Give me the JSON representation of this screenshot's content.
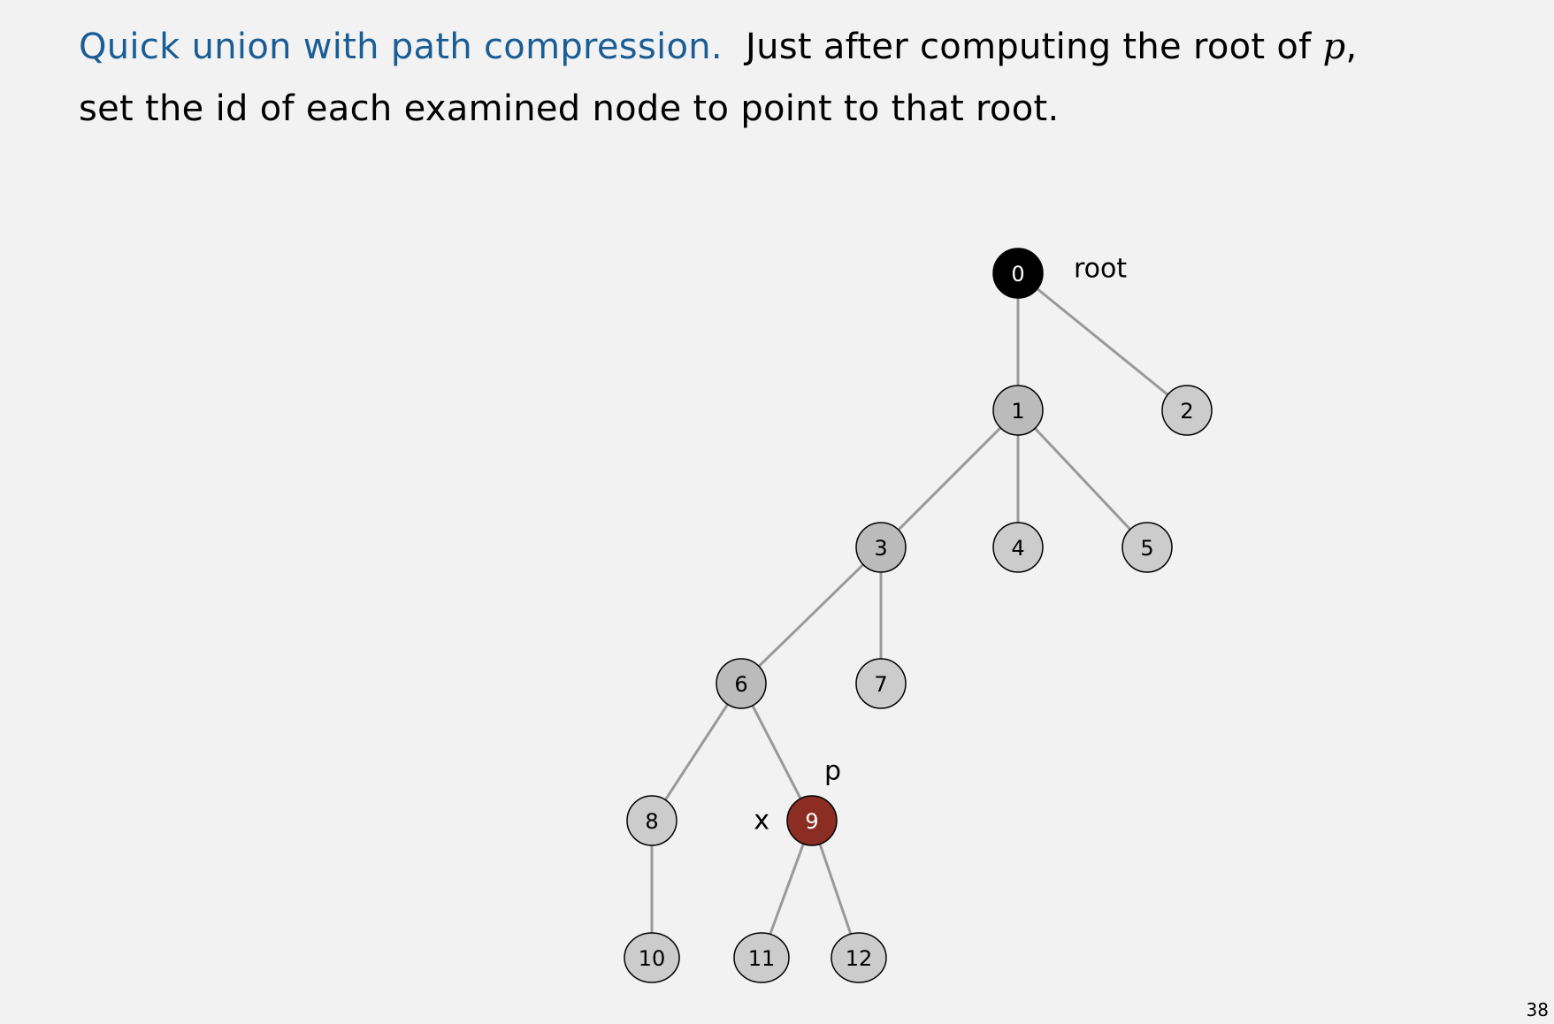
{
  "heading": {
    "lead": "Quick union with path compression.",
    "text_before_var": "Just after computing the root of",
    "var": "p",
    "text_after_var": ",",
    "line2": "set the id of each examined node to point to that root."
  },
  "slide_number": "38",
  "colors": {
    "lead_text": "#1a5d94",
    "root_fill": "#000000",
    "highlight_fill": "#8b2d22",
    "path_fill": "#bbbbbb",
    "plain_fill": "#cccccc",
    "edge": "#999999",
    "background": "#f2f2f2"
  },
  "nodes": [
    {
      "id": "0",
      "label": "0",
      "kind": "root"
    },
    {
      "id": "1",
      "label": "1",
      "kind": "path"
    },
    {
      "id": "2",
      "label": "2",
      "kind": "plain"
    },
    {
      "id": "3",
      "label": "3",
      "kind": "path"
    },
    {
      "id": "4",
      "label": "4",
      "kind": "plain"
    },
    {
      "id": "5",
      "label": "5",
      "kind": "plain"
    },
    {
      "id": "6",
      "label": "6",
      "kind": "path"
    },
    {
      "id": "7",
      "label": "7",
      "kind": "plain"
    },
    {
      "id": "8",
      "label": "8",
      "kind": "plain"
    },
    {
      "id": "9",
      "label": "9",
      "kind": "highlight"
    },
    {
      "id": "10",
      "label": "10",
      "kind": "plain"
    },
    {
      "id": "11",
      "label": "11",
      "kind": "plain"
    },
    {
      "id": "12",
      "label": "12",
      "kind": "plain"
    }
  ],
  "edges": [
    {
      "from": "0",
      "to": "1"
    },
    {
      "from": "0",
      "to": "2"
    },
    {
      "from": "1",
      "to": "3"
    },
    {
      "from": "1",
      "to": "4"
    },
    {
      "from": "1",
      "to": "5"
    },
    {
      "from": "3",
      "to": "6"
    },
    {
      "from": "3",
      "to": "7"
    },
    {
      "from": "6",
      "to": "8"
    },
    {
      "from": "6",
      "to": "9"
    },
    {
      "from": "8",
      "to": "10"
    },
    {
      "from": "9",
      "to": "11"
    },
    {
      "from": "9",
      "to": "12"
    }
  ],
  "annotations": [
    {
      "node": "0",
      "text": "root"
    },
    {
      "node": "9",
      "text": "p"
    },
    {
      "node": "9",
      "text": "x"
    }
  ]
}
